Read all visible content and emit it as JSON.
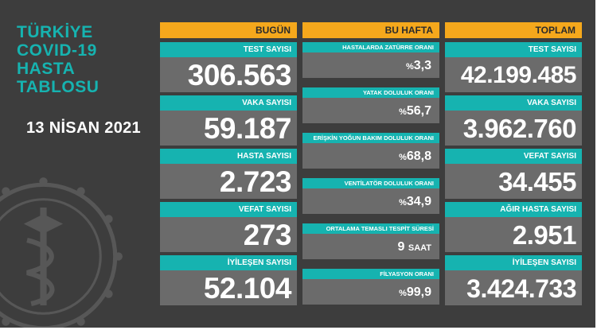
{
  "title_lines": [
    "TÜRKİYE",
    "COVID-19",
    "HASTA",
    "TABLOSU"
  ],
  "date": "13 NİSAN 2021",
  "colors": {
    "background": "#3d3d3d",
    "teal": "#16b3b0",
    "orange": "#f5a81c",
    "value_bg": "#6b6b6b"
  },
  "columns": {
    "today": "BUGÜN",
    "week": "BU HAFTA",
    "total": "TOPLAM"
  },
  "today": [
    {
      "label": "TEST SAYISI",
      "value": "306.563"
    },
    {
      "label": "VAKA SAYISI",
      "value": "59.187"
    },
    {
      "label": "HASTA SAYISI",
      "value": "2.723"
    },
    {
      "label": "VEFAT SAYISI",
      "value": "273"
    },
    {
      "label": "İYİLEŞEN SAYISI",
      "value": "52.104"
    }
  ],
  "week": [
    {
      "label": "HASTALARDA ZATÜRRE ORANI",
      "prefix": "%",
      "value": "3,3",
      "unit": ""
    },
    {
      "label": "YATAK DOLULUK ORANI",
      "prefix": "%",
      "value": "56,7",
      "unit": ""
    },
    {
      "label": "ERİŞKİN YOĞUN BAKIM DOLULUK ORANI",
      "prefix": "%",
      "value": "68,8",
      "unit": ""
    },
    {
      "label": "VENTİLATÖR DOLULUK ORANI",
      "prefix": "%",
      "value": "34,9",
      "unit": ""
    },
    {
      "label": "ORTALAMA TEMASLI TESPİT SÜRESİ",
      "prefix": "",
      "value": "9",
      "unit": "SAAT"
    },
    {
      "label": "FİLYASYON ORANI",
      "prefix": "%",
      "value": "99,9",
      "unit": ""
    }
  ],
  "total": [
    {
      "label": "TEST SAYISI",
      "value": "42.199.485"
    },
    {
      "label": "VAKA SAYISI",
      "value": "3.962.760"
    },
    {
      "label": "VEFAT SAYISI",
      "value": "34.455"
    },
    {
      "label": "AĞIR HASTA SAYISI",
      "value": "2.951"
    },
    {
      "label": "İYİLEŞEN SAYISI",
      "value": "3.424.733"
    }
  ]
}
